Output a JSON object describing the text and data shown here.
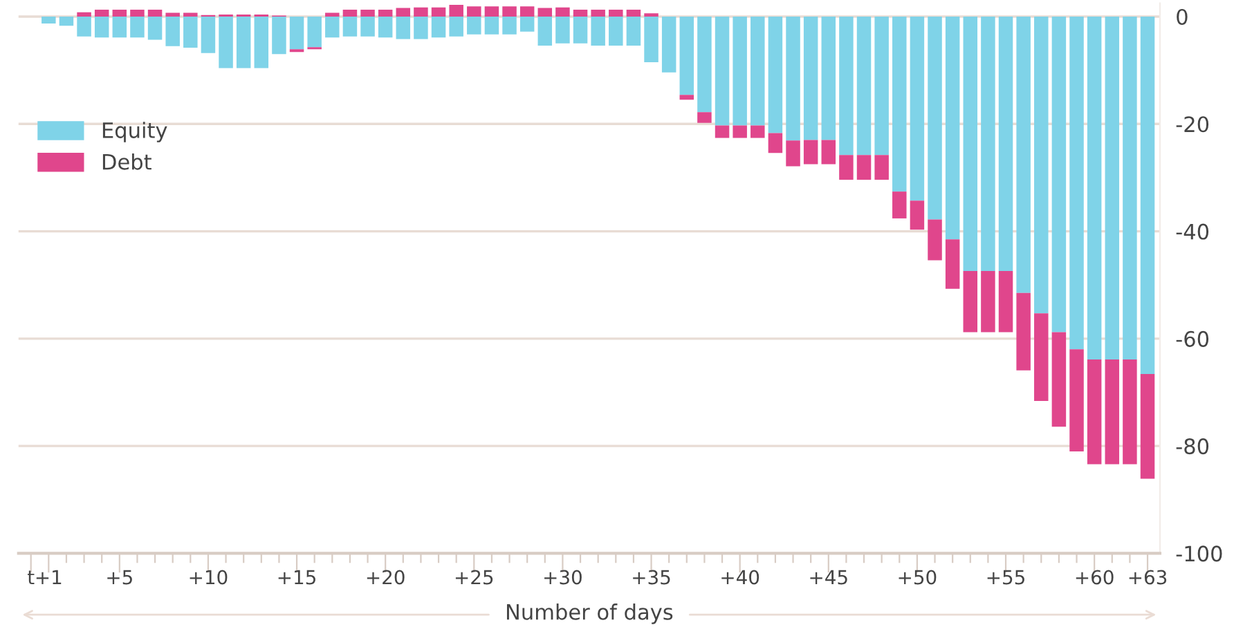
{
  "chart_data": {
    "type": "bar",
    "stacked": true,
    "xlabel": "Number of days",
    "categories": [
      "t",
      "+1",
      null,
      null,
      null,
      "+5",
      null,
      null,
      null,
      null,
      "+10",
      null,
      null,
      null,
      null,
      "+15",
      null,
      null,
      null,
      null,
      "+20",
      null,
      null,
      null,
      null,
      "+25",
      null,
      null,
      null,
      null,
      "+30",
      null,
      null,
      null,
      null,
      "+35",
      null,
      null,
      null,
      null,
      "+40",
      null,
      null,
      null,
      null,
      "+45",
      null,
      null,
      null,
      null,
      "+50",
      null,
      null,
      null,
      null,
      "+55",
      null,
      null,
      null,
      null,
      "+60",
      null,
      null,
      "+63"
    ],
    "series": [
      {
        "name": "Equity",
        "color": "#7fd3e8",
        "values": [
          0,
          -1.3,
          -1.7,
          -3.7,
          -3.9,
          -3.9,
          -3.9,
          -4.3,
          -5.5,
          -5.8,
          -6.8,
          -9.6,
          -9.6,
          -9.6,
          -7.0,
          -6.1,
          -5.7,
          -3.9,
          -3.7,
          -3.7,
          -3.9,
          -4.2,
          -4.2,
          -3.9,
          -3.7,
          -3.3,
          -3.3,
          -3.3,
          -2.8,
          -5.4,
          -5.0,
          -5.0,
          -5.4,
          -5.4,
          -5.4,
          -8.5,
          -10.4,
          -14.6,
          -17.8,
          -20.3,
          -20.3,
          -20.3,
          -21.7,
          -23.1,
          -23.0,
          -23.0,
          -25.8,
          -25.8,
          -25.8,
          -32.6,
          -34.3,
          -37.8,
          -41.5,
          -47.4,
          -47.4,
          -47.4,
          -51.5,
          -55.3,
          -58.8,
          -62.0,
          -63.9,
          -63.9,
          -63.9,
          -66.6
        ]
      },
      {
        "name": "Debt",
        "color": "#e0468c",
        "values": [
          0,
          0,
          0,
          0.8,
          1.3,
          1.3,
          1.3,
          1.3,
          0.7,
          0.7,
          0.3,
          0.4,
          0.4,
          0.4,
          0.2,
          -0.5,
          -0.4,
          0.7,
          1.3,
          1.3,
          1.3,
          1.6,
          1.7,
          1.7,
          2.2,
          1.9,
          1.9,
          1.9,
          1.9,
          1.6,
          1.7,
          1.3,
          1.3,
          1.3,
          1.3,
          0.6,
          0,
          -0.9,
          -2.0,
          -2.3,
          -2.3,
          -2.3,
          -3.7,
          -4.8,
          -4.5,
          -4.5,
          -4.6,
          -4.6,
          -4.6,
          -5.0,
          -5.4,
          -7.6,
          -9.2,
          -11.4,
          -11.4,
          -11.4,
          -14.4,
          -16.3,
          -17.6,
          -19.0,
          -19.5,
          -19.5,
          -19.5,
          -19.5
        ]
      }
    ],
    "ylim": [
      -100,
      2.5
    ],
    "yticks": [
      0,
      -20,
      -40,
      -60,
      -80,
      -100
    ],
    "grid": "y",
    "legend": "left"
  }
}
